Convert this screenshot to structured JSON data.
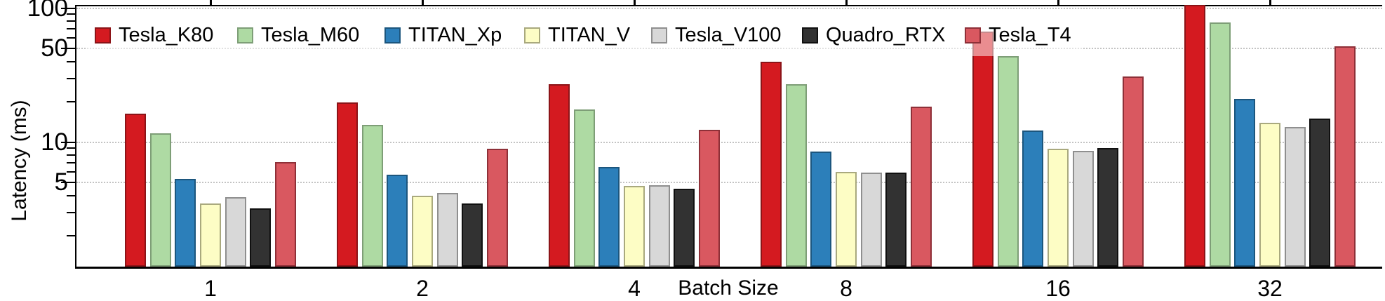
{
  "chart_data": {
    "type": "bar",
    "title": "",
    "xlabel": "Batch Size",
    "ylabel": "Latency (ms)",
    "yscale": "log",
    "ylim": [
      1.18,
      105.7
    ],
    "ytick_major": [
      100,
      50,
      10,
      5
    ],
    "ytick_major_labels": [
      "100",
      "50",
      "10",
      "5"
    ],
    "ytick_minor": [
      90,
      80,
      70,
      60,
      40,
      30,
      20,
      9,
      8,
      7,
      6,
      4,
      3,
      2
    ],
    "grid": "horizontal dotted lines at major ticks",
    "legend_position": "top row inside plot, semi-transparent white background",
    "categories": [
      "1",
      "2",
      "4",
      "8",
      "16",
      "32"
    ],
    "series": [
      {
        "name": "Tesla_K80",
        "fill": "#d41a20",
        "edge": "#8c1418",
        "values": [
          16.4,
          19.9,
          27,
          40,
          67,
          106
        ]
      },
      {
        "name": "Tesla_M60",
        "fill": "#aedaa3",
        "edge": "#7e9e77",
        "values": [
          11.7,
          13.4,
          17.6,
          27,
          44,
          78
        ]
      },
      {
        "name": "TITAN_Xp",
        "fill": "#2c7fba",
        "edge": "#1c567e",
        "values": [
          5.3,
          5.7,
          6.5,
          8.5,
          12.3,
          21
        ]
      },
      {
        "name": "TITAN_V",
        "fill": "#fdfdc5",
        "edge": "#a9a97e",
        "values": [
          3.5,
          4.0,
          4.7,
          6.0,
          8.9,
          14
        ]
      },
      {
        "name": "Tesla_V100",
        "fill": "#d8d8d8",
        "edge": "#8f8f8f",
        "values": [
          3.9,
          4.2,
          4.8,
          5.9,
          8.6,
          13
        ]
      },
      {
        "name": "Quadro_RTX",
        "fill": "#323232",
        "edge": "#101010",
        "values": [
          3.2,
          3.5,
          4.5,
          5.9,
          9.0,
          15
        ]
      },
      {
        "name": "Tesla_T4",
        "fill": "#d95860",
        "edge": "#8e3038",
        "values": [
          7.1,
          8.9,
          12.4,
          18.5,
          31,
          52
        ]
      }
    ]
  }
}
